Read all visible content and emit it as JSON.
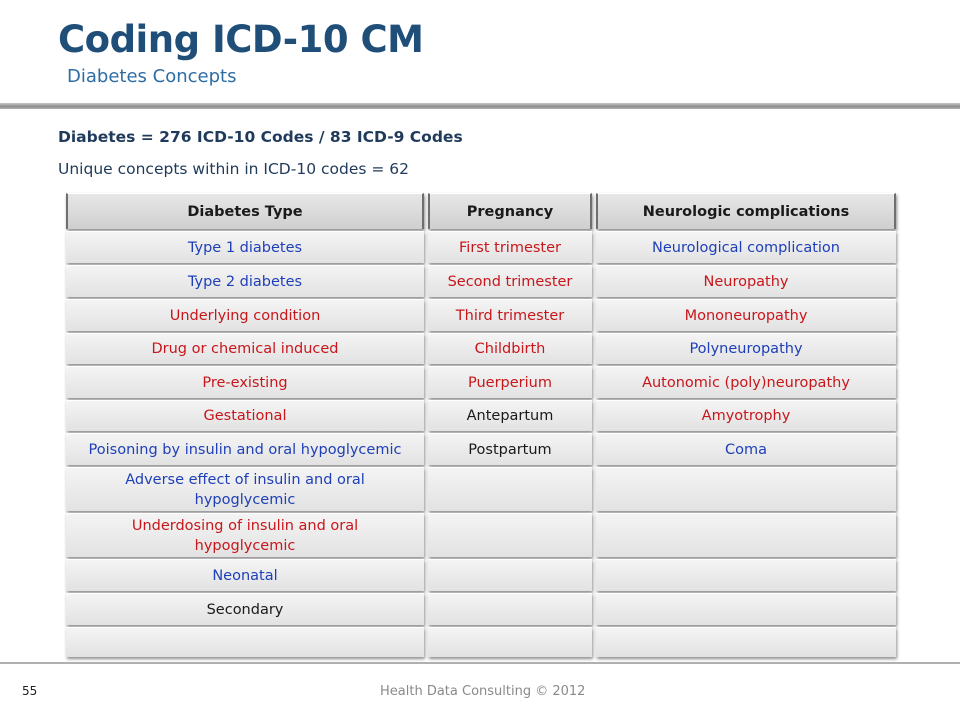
{
  "title": "Coding ICD-10 CM",
  "subtitle": "Diabetes Concepts",
  "line1": "Diabetes = 276 ICD-10 Codes / 83 ICD-9 Codes",
  "line2": "Unique concepts within in ICD-10 codes = 62",
  "table": {
    "headers": [
      "Diabetes Type",
      "Pregnancy",
      "Neurologic complications"
    ],
    "rows": [
      [
        {
          "text": "Type 1 diabetes",
          "color": "blue"
        },
        {
          "text": "First trimester",
          "color": "red"
        },
        {
          "text": "Neurological complication",
          "color": "blue"
        }
      ],
      [
        {
          "text": "Type 2 diabetes",
          "color": "blue"
        },
        {
          "text": "Second trimester",
          "color": "red"
        },
        {
          "text": "Neuropathy",
          "color": "red"
        }
      ],
      [
        {
          "text": "Underlying condition",
          "color": "red"
        },
        {
          "text": "Third trimester",
          "color": "red"
        },
        {
          "text": "Mononeuropathy",
          "color": "red"
        }
      ],
      [
        {
          "text": "Drug or chemical induced",
          "color": "red"
        },
        {
          "text": "Childbirth",
          "color": "red"
        },
        {
          "text": "Polyneuropathy",
          "color": "blue"
        }
      ],
      [
        {
          "text": "Pre-existing",
          "color": "red"
        },
        {
          "text": "Puerperium",
          "color": "red"
        },
        {
          "text": "Autonomic (poly)neuropathy",
          "color": "red"
        }
      ],
      [
        {
          "text": "Gestational",
          "color": "red"
        },
        {
          "text": "Antepartum",
          "color": "black"
        },
        {
          "text": "Amyotrophy",
          "color": "red"
        }
      ],
      [
        {
          "text": "Poisoning by insulin and oral hypoglycemic",
          "color": "blue"
        },
        {
          "text": "Postpartum",
          "color": "black"
        },
        {
          "text": "Coma",
          "color": "blue"
        }
      ],
      [
        {
          "text": "Adverse effect of insulin and oral hypoglycemic",
          "color": "blue"
        },
        {
          "text": "",
          "color": "black"
        },
        {
          "text": "",
          "color": "black"
        }
      ],
      [
        {
          "text": "Underdosing of insulin and oral hypoglycemic",
          "color": "red"
        },
        {
          "text": "",
          "color": "black"
        },
        {
          "text": "",
          "color": "black"
        }
      ],
      [
        {
          "text": "Neonatal",
          "color": "blue"
        },
        {
          "text": "",
          "color": "black"
        },
        {
          "text": "",
          "color": "black"
        }
      ],
      [
        {
          "text": "Secondary",
          "color": "black"
        },
        {
          "text": "",
          "color": "black"
        },
        {
          "text": "",
          "color": "black"
        }
      ],
      [
        {
          "text": "",
          "color": "black"
        },
        {
          "text": "",
          "color": "black"
        },
        {
          "text": "",
          "color": "black"
        }
      ]
    ]
  },
  "colors": {
    "blue": "#1e3fb8",
    "red": "#c8161b",
    "black": "#1a1a1a",
    "title": "#1f4e79"
  },
  "footer": {
    "page_number": "55",
    "text": "Health Data Consulting © 2012"
  }
}
